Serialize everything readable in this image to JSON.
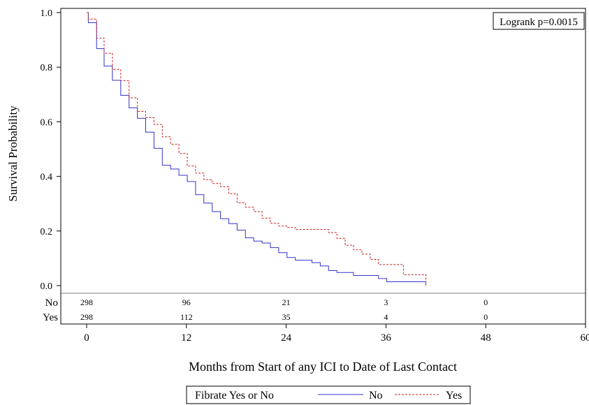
{
  "chart_data": {
    "type": "line",
    "xlabel": "Months from Start of any ICI to Date of Last Contact",
    "ylabel": "Survival Probability",
    "xlim": [
      0,
      60
    ],
    "ylim": [
      0,
      1.0
    ],
    "x_ticks": [
      "0",
      "12",
      "24",
      "36",
      "48",
      "60"
    ],
    "y_ticks": [
      "0.0",
      "0.2",
      "0.4",
      "0.6",
      "0.8",
      "1.0"
    ],
    "annotation": "Logrank p=0.0015",
    "legend_title": "Fibrate Yes or No",
    "legend_position": "bottom",
    "colors": {
      "No": "#3333cc",
      "Yes": "#cc2222"
    },
    "series": [
      {
        "name": "No",
        "style": "solid",
        "points": [
          [
            0,
            1.0
          ],
          [
            0.2,
            0.963
          ],
          [
            1.2,
            0.868
          ],
          [
            2.1,
            0.804
          ],
          [
            3.1,
            0.752
          ],
          [
            4.1,
            0.697
          ],
          [
            5.1,
            0.651
          ],
          [
            6.1,
            0.613
          ],
          [
            7.1,
            0.562
          ],
          [
            8.1,
            0.503
          ],
          [
            9.1,
            0.441
          ],
          [
            10.1,
            0.427
          ],
          [
            11.1,
            0.404
          ],
          [
            12.1,
            0.381
          ],
          [
            13.1,
            0.333
          ],
          [
            14.1,
            0.302
          ],
          [
            15.1,
            0.271
          ],
          [
            16.1,
            0.245
          ],
          [
            17.1,
            0.227
          ],
          [
            18.1,
            0.203
          ],
          [
            19.1,
            0.175
          ],
          [
            20.1,
            0.163
          ],
          [
            21.1,
            0.156
          ],
          [
            22.1,
            0.139
          ],
          [
            23.1,
            0.121
          ],
          [
            24.1,
            0.103
          ],
          [
            25.1,
            0.093
          ],
          [
            27.1,
            0.084
          ],
          [
            28.1,
            0.072
          ],
          [
            29.1,
            0.055
          ],
          [
            30.1,
            0.048
          ],
          [
            32.1,
            0.037
          ],
          [
            35.1,
            0.026
          ],
          [
            36.1,
            0.014
          ],
          [
            40.8,
            0.0
          ]
        ]
      },
      {
        "name": "Yes",
        "style": "dashed",
        "points": [
          [
            0,
            1.0
          ],
          [
            0.2,
            0.976
          ],
          [
            1.2,
            0.906
          ],
          [
            2.1,
            0.851
          ],
          [
            3.1,
            0.792
          ],
          [
            4.1,
            0.751
          ],
          [
            5.1,
            0.688
          ],
          [
            6.1,
            0.638
          ],
          [
            7.1,
            0.615
          ],
          [
            8.1,
            0.59
          ],
          [
            9.1,
            0.545
          ],
          [
            10.1,
            0.518
          ],
          [
            11.1,
            0.484
          ],
          [
            12.1,
            0.438
          ],
          [
            13.1,
            0.412
          ],
          [
            14.1,
            0.388
          ],
          [
            15.1,
            0.374
          ],
          [
            16.1,
            0.362
          ],
          [
            17.1,
            0.336
          ],
          [
            18.1,
            0.303
          ],
          [
            19.1,
            0.287
          ],
          [
            20.1,
            0.271
          ],
          [
            21.1,
            0.247
          ],
          [
            22.1,
            0.228
          ],
          [
            23.1,
            0.218
          ],
          [
            24.1,
            0.213
          ],
          [
            25.1,
            0.206
          ],
          [
            29.1,
            0.194
          ],
          [
            30.1,
            0.173
          ],
          [
            31.1,
            0.148
          ],
          [
            32.1,
            0.131
          ],
          [
            33.1,
            0.115
          ],
          [
            34.1,
            0.096
          ],
          [
            35.1,
            0.077
          ],
          [
            38.1,
            0.04
          ],
          [
            40.8,
            0.0
          ]
        ]
      }
    ],
    "risk_table": {
      "time_points": [
        0,
        12,
        24,
        36,
        48
      ],
      "rows": [
        {
          "label": "No",
          "counts": [
            "298",
            "96",
            "21",
            "3",
            "0"
          ]
        },
        {
          "label": "Yes",
          "counts": [
            "298",
            "112",
            "35",
            "4",
            "0"
          ]
        }
      ]
    }
  }
}
